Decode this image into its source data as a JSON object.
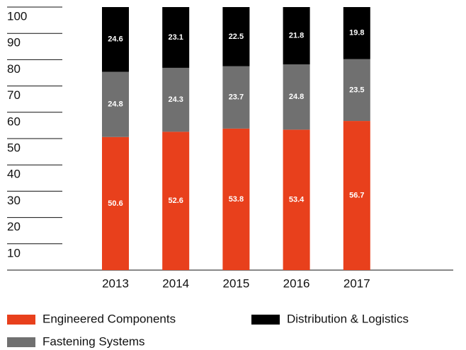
{
  "chart_data": {
    "type": "stacked_bar",
    "categories": [
      "2013",
      "2014",
      "2015",
      "2016",
      "2017"
    ],
    "series": [
      {
        "name": "Engineered Components",
        "color": "#e8401c",
        "values": [
          50.6,
          52.6,
          53.8,
          53.4,
          56.7
        ]
      },
      {
        "name": "Fastening Systems",
        "color": "#707070",
        "values": [
          24.8,
          24.3,
          23.7,
          24.8,
          23.5
        ]
      },
      {
        "name": "Distribution & Logistics",
        "color": "#000000",
        "values": [
          24.6,
          23.1,
          22.5,
          21.8,
          19.8
        ]
      }
    ],
    "ylim": [
      0,
      100
    ],
    "yticks": [
      10,
      20,
      30,
      40,
      50,
      60,
      70,
      80,
      90,
      100
    ],
    "grid": true
  }
}
